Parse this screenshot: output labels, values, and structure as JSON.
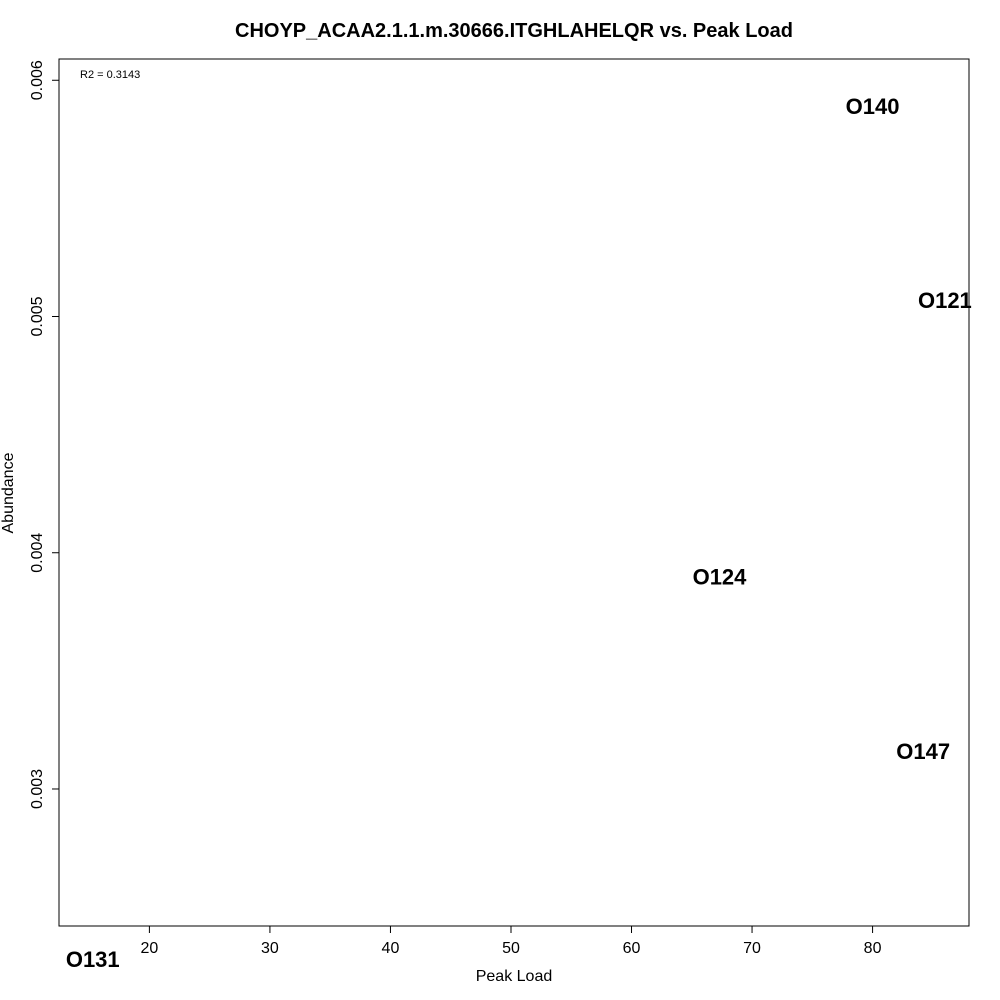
{
  "chart_data": {
    "type": "scatter",
    "title": "CHOYP_ACAA2.1.1.m.30666.ITGHLAHELQR vs. Peak Load",
    "xlabel": "Peak Load",
    "ylabel": "Abundance",
    "annotation": "R2 = 0.3143",
    "xlim": [
      12.5,
      88
    ],
    "ylim": [
      0.00242,
      0.00609
    ],
    "xticks": [
      20,
      30,
      40,
      50,
      60,
      70,
      80
    ],
    "xtick_labels": [
      "20",
      "30",
      "40",
      "50",
      "60",
      "70",
      "80"
    ],
    "yticks": [
      0.003,
      0.004,
      0.005,
      0.006
    ],
    "ytick_labels": [
      "0.003",
      "0.004",
      "0.005",
      "0.006"
    ],
    "marker": "text-label",
    "points": [
      {
        "label": "O140",
        "x": 80.0,
        "y": 0.00589
      },
      {
        "label": "O121",
        "x": 86.0,
        "y": 0.00507
      },
      {
        "label": "O124",
        "x": 67.3,
        "y": 0.0039
      },
      {
        "label": "O147",
        "x": 84.2,
        "y": 0.00316
      },
      {
        "label": "O131",
        "x": 15.3,
        "y": 0.00228
      }
    ],
    "grid": false,
    "legend": "none"
  }
}
